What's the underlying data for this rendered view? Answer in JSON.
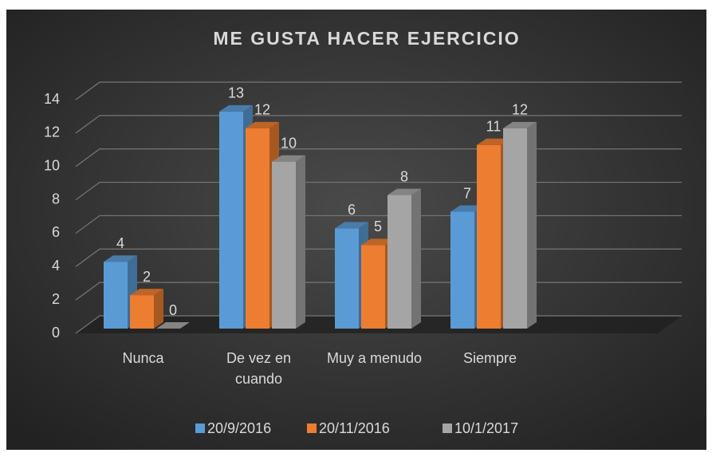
{
  "chart_data": {
    "type": "bar3d",
    "title": "ME GUSTA HACER EJERCICIO",
    "categories": [
      "Nunca",
      "De vez en cuando",
      "Muy a menudo",
      "Siempre"
    ],
    "series": [
      {
        "name": "20/9/2016",
        "color": "#5b9bd5",
        "values": [
          4,
          13,
          6,
          7
        ]
      },
      {
        "name": "20/11/2016",
        "color": "#ed7d31",
        "values": [
          2,
          12,
          5,
          11
        ]
      },
      {
        "name": "10/1/2017",
        "color": "#a5a5a5",
        "values": [
          0,
          10,
          8,
          12
        ]
      }
    ],
    "ylim": [
      0,
      14
    ],
    "yticks": [
      0,
      2,
      4,
      6,
      8,
      10,
      12,
      14
    ],
    "grid": true,
    "legend": "bottom"
  }
}
